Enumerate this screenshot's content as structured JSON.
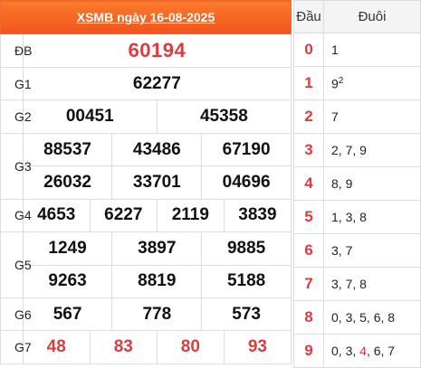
{
  "title": "XSMB ngày 16-08-2025",
  "prizes": {
    "db": {
      "label": "ĐB",
      "numbers": [
        "60194"
      ]
    },
    "g1": {
      "label": "G1",
      "numbers": [
        "62277"
      ]
    },
    "g2": {
      "label": "G2",
      "numbers": [
        "00451",
        "45358"
      ]
    },
    "g3": {
      "label": "G3",
      "numbers": [
        "88537",
        "43486",
        "67190",
        "26032",
        "33701",
        "04696"
      ]
    },
    "g4": {
      "label": "G4",
      "numbers": [
        "4653",
        "6227",
        "2119",
        "3839"
      ]
    },
    "g5": {
      "label": "G5",
      "numbers": [
        "1249",
        "3897",
        "9885",
        "9263",
        "8819",
        "5188"
      ]
    },
    "g6": {
      "label": "G6",
      "numbers": [
        "567",
        "778",
        "573"
      ]
    },
    "g7": {
      "label": "G7",
      "numbers": [
        "48",
        "83",
        "80",
        "93"
      ]
    }
  },
  "loto": {
    "head_label": "Đầu",
    "tail_label": "Đuôi",
    "rows": [
      {
        "head": "0",
        "tails": "1"
      },
      {
        "head": "1",
        "tails": "9",
        "sup": "2"
      },
      {
        "head": "2",
        "tails": "7"
      },
      {
        "head": "3",
        "tails": "2, 7, 9"
      },
      {
        "head": "4",
        "tails": "8, 9"
      },
      {
        "head": "5",
        "tails": "1, 3, 8"
      },
      {
        "head": "6",
        "tails": "3, 7"
      },
      {
        "head": "7",
        "tails": "3, 7, 8"
      },
      {
        "head": "8",
        "tails": "0, 3, 5, 6, 8"
      },
      {
        "head": "9",
        "tails_before": "0, 3, ",
        "tails_highlight": "4",
        "tails_after": ", 6, 7"
      }
    ]
  },
  "colors": {
    "header_orange": "#f2541d",
    "number_red": "#e03a3e"
  }
}
